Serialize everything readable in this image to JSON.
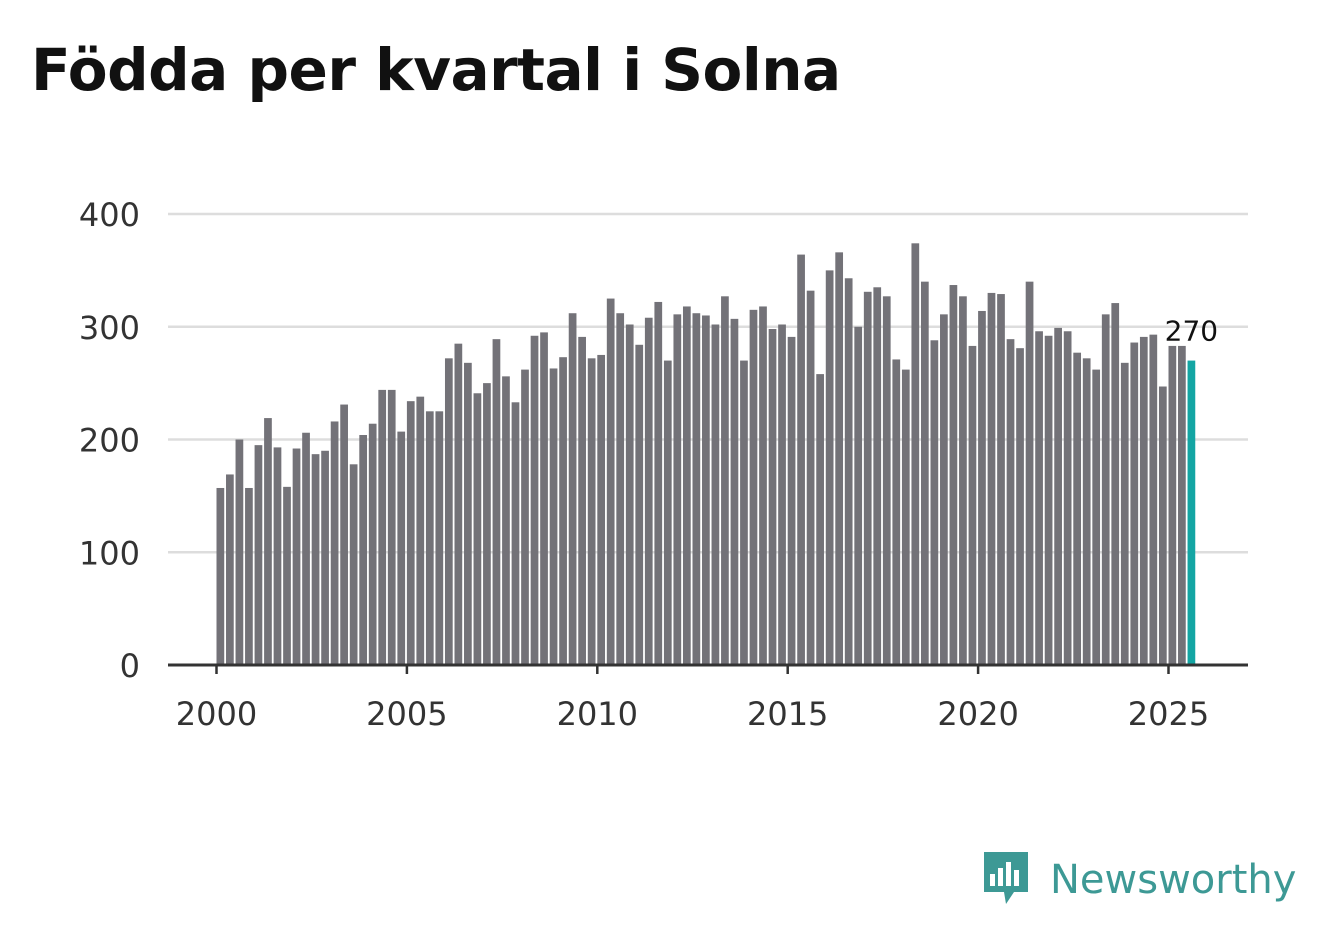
{
  "title": "Födda per kvartal i Solna",
  "brand": {
    "name": "Newsworthy",
    "logo_icon": "bar-chart-speech-bubble-icon",
    "color": "#3d9995"
  },
  "chart_data": {
    "type": "bar",
    "title": "Födda per kvartal i Solna",
    "xlabel": "",
    "ylabel": "",
    "x_start": 2000,
    "x_step": 0.25,
    "xlim": [
      1999.75,
      2027.25
    ],
    "ylim": [
      0,
      400
    ],
    "yticks": [
      0,
      100,
      200,
      300,
      400
    ],
    "xticks": [
      2000,
      2005,
      2010,
      2015,
      2020,
      2025
    ],
    "grid": true,
    "bar_color": "#737278",
    "highlight_color": "#13a5a3",
    "values": [
      157,
      169,
      200,
      157,
      195,
      219,
      193,
      158,
      192,
      206,
      187,
      190,
      216,
      231,
      178,
      204,
      214,
      244,
      244,
      207,
      234,
      238,
      225,
      225,
      272,
      285,
      268,
      241,
      250,
      289,
      256,
      233,
      262,
      292,
      295,
      263,
      273,
      312,
      291,
      272,
      275,
      325,
      312,
      302,
      284,
      308,
      322,
      270,
      311,
      318,
      312,
      310,
      302,
      327,
      307,
      270,
      315,
      318,
      298,
      302,
      291,
      364,
      332,
      258,
      350,
      366,
      343,
      300,
      331,
      335,
      327,
      271,
      262,
      374,
      340,
      288,
      311,
      337,
      327,
      283,
      314,
      330,
      329,
      289,
      281,
      340,
      296,
      292,
      299,
      296,
      277,
      272,
      262,
      311,
      321,
      268,
      286,
      291,
      293,
      247,
      283,
      283,
      270
    ],
    "annotation": {
      "label": "270",
      "index": 102
    }
  }
}
